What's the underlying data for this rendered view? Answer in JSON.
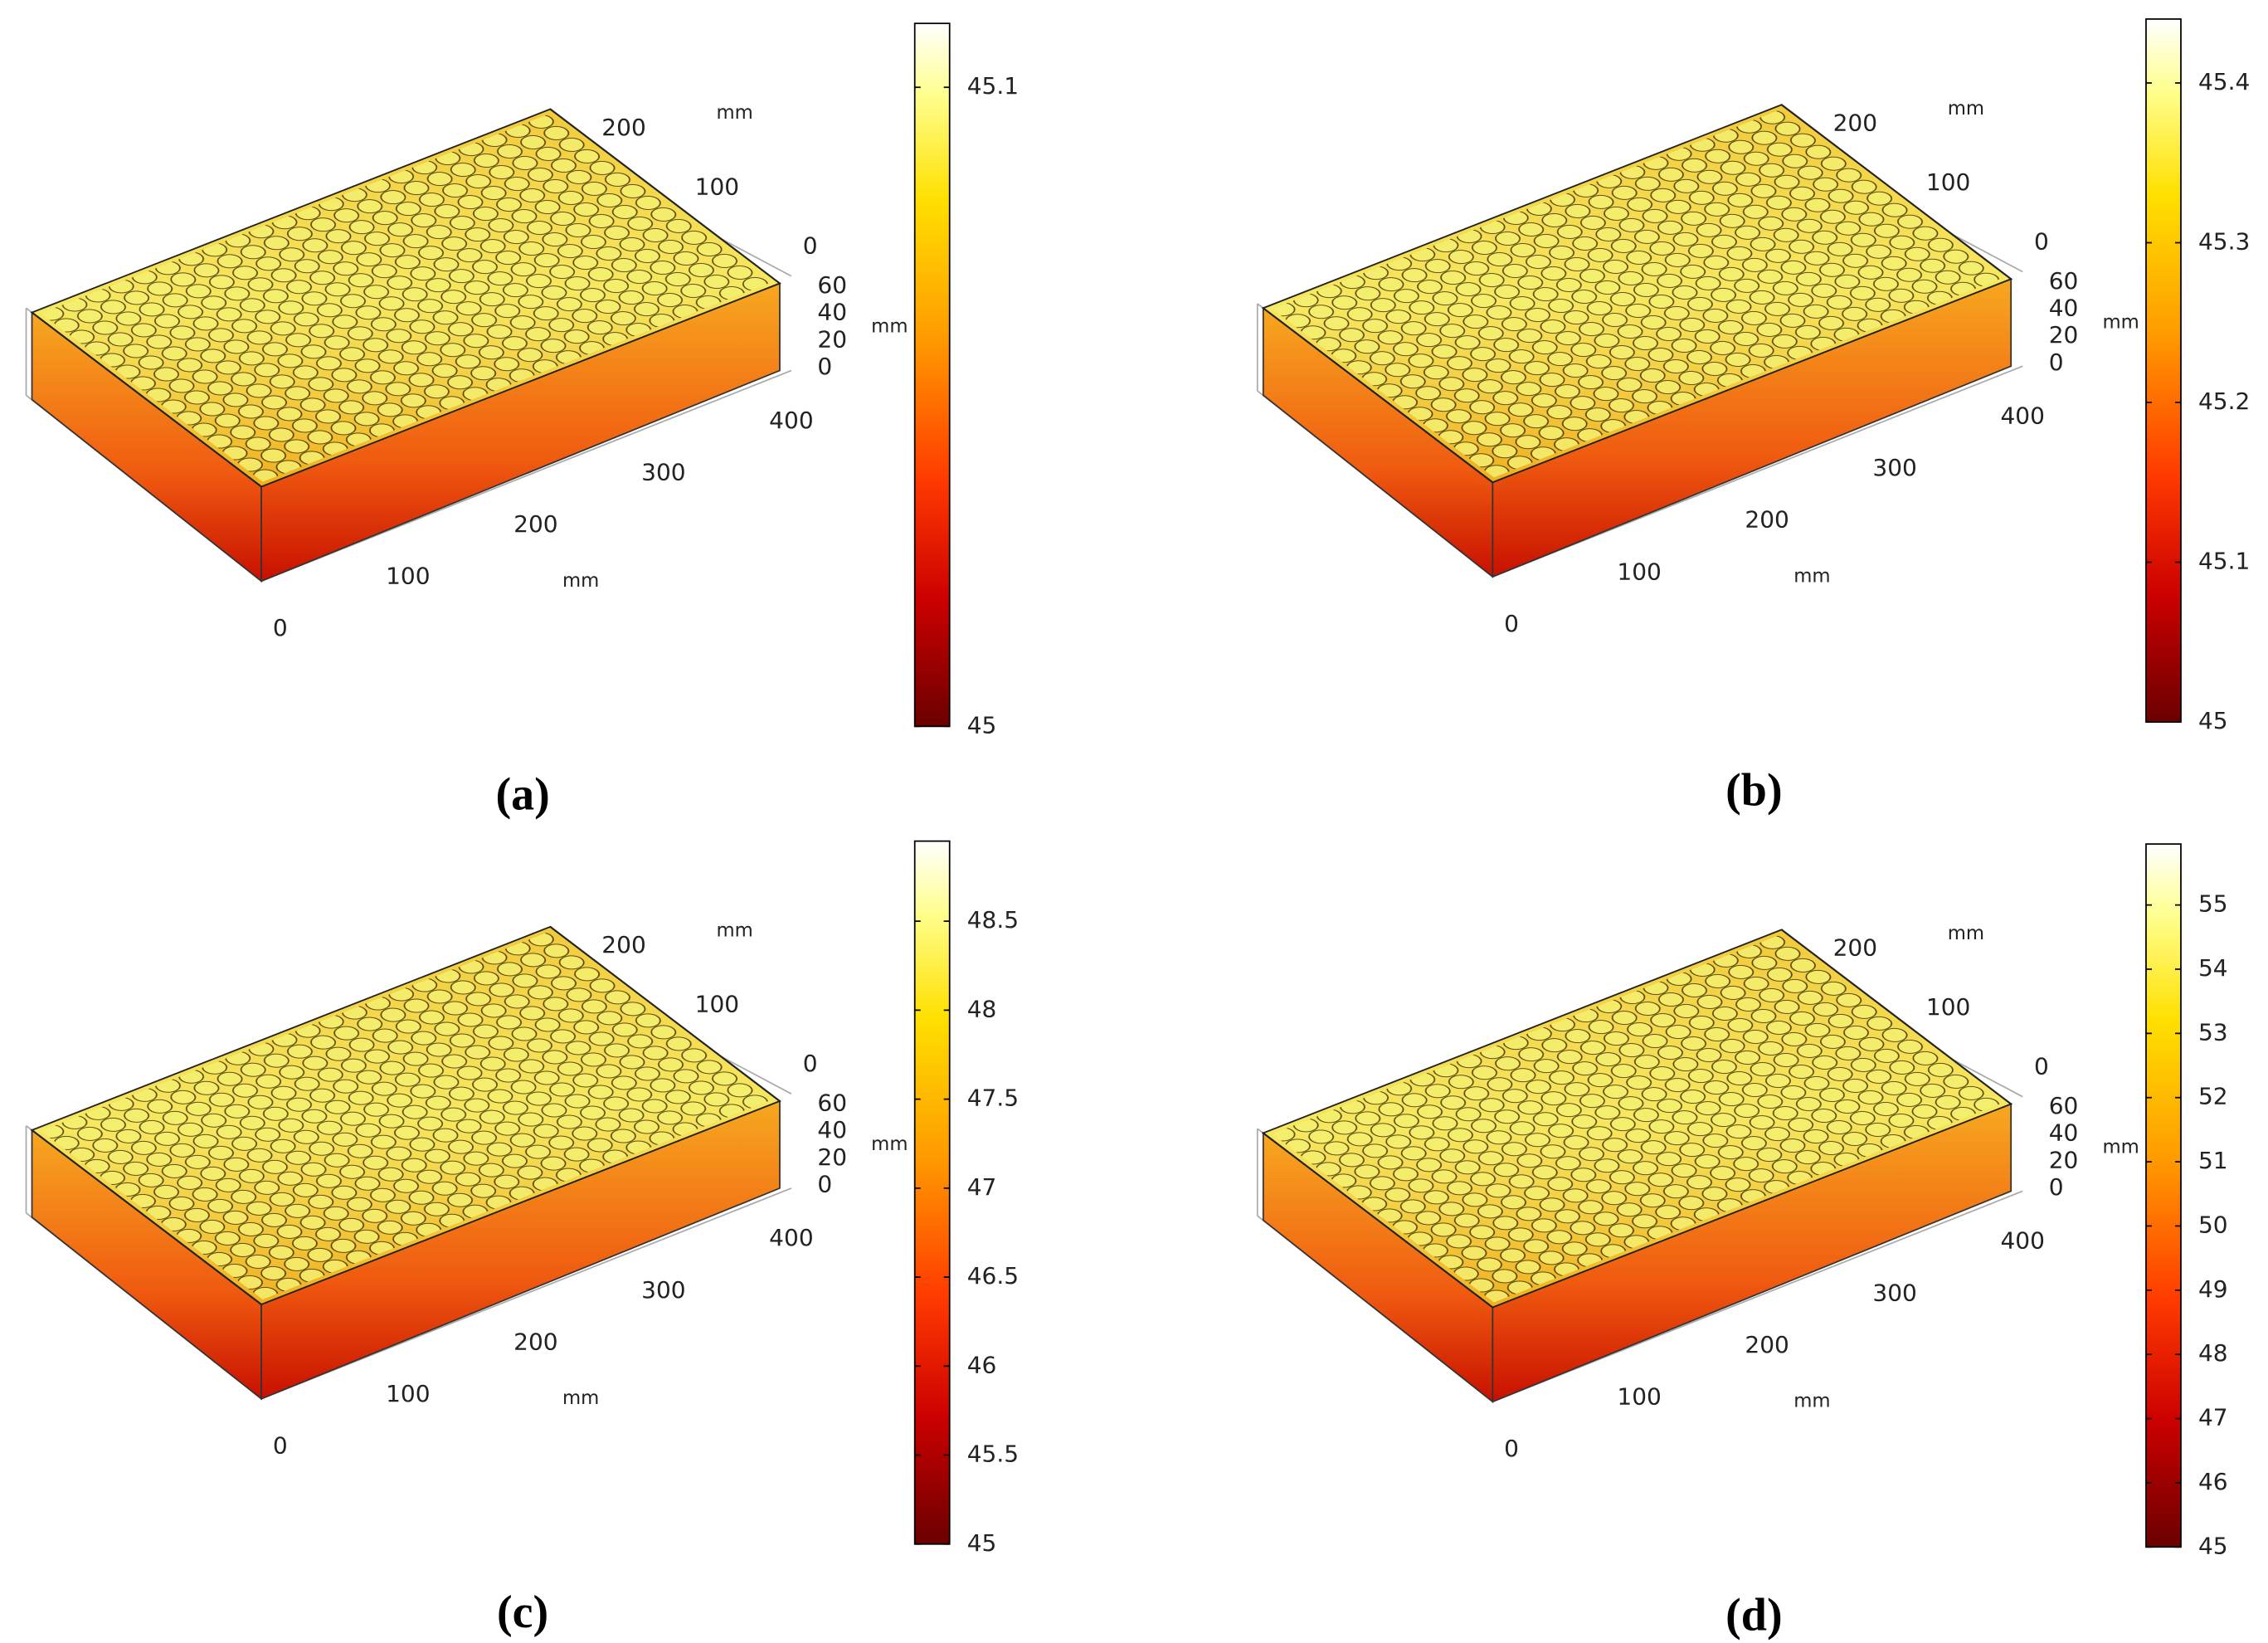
{
  "chart_data": [
    {
      "type": "surface3d",
      "label": "(a)",
      "xlim": [
        0,
        400
      ],
      "xticks": [
        0,
        100,
        200,
        300,
        400
      ],
      "ylim": [
        0,
        240
      ],
      "yticks": [
        0,
        100,
        200
      ],
      "zlim": [
        0,
        60
      ],
      "zticks": [
        0,
        20,
        40,
        60
      ],
      "x_unit": "mm",
      "y_unit": "mm",
      "z_unit": "mm",
      "colormap": "heat",
      "colorbar": {
        "lim": [
          45,
          45.11
        ],
        "ticks": [
          45,
          45.1
        ]
      }
    },
    {
      "type": "surface3d",
      "label": "(b)",
      "xlim": [
        0,
        400
      ],
      "xticks": [
        0,
        100,
        200,
        300,
        400
      ],
      "ylim": [
        0,
        240
      ],
      "yticks": [
        0,
        100,
        200
      ],
      "zlim": [
        0,
        60
      ],
      "zticks": [
        0,
        20,
        40,
        60
      ],
      "x_unit": "mm",
      "y_unit": "mm",
      "z_unit": "mm",
      "colormap": "heat",
      "colorbar": {
        "lim": [
          45,
          45.44
        ],
        "ticks": [
          45,
          45.1,
          45.2,
          45.3,
          45.4
        ]
      }
    },
    {
      "type": "surface3d",
      "label": "(c)",
      "xlim": [
        0,
        400
      ],
      "xticks": [
        0,
        100,
        200,
        300,
        400
      ],
      "ylim": [
        0,
        240
      ],
      "yticks": [
        0,
        100,
        200
      ],
      "zlim": [
        0,
        60
      ],
      "zticks": [
        0,
        20,
        40,
        60
      ],
      "x_unit": "mm",
      "y_unit": "mm",
      "z_unit": "mm",
      "colormap": "heat",
      "colorbar": {
        "lim": [
          45,
          48.95
        ],
        "ticks": [
          45,
          45.5,
          46,
          46.5,
          47,
          47.5,
          48,
          48.5
        ]
      }
    },
    {
      "type": "surface3d",
      "label": "(d)",
      "xlim": [
        0,
        400
      ],
      "xticks": [
        0,
        100,
        200,
        300,
        400
      ],
      "ylim": [
        0,
        240
      ],
      "yticks": [
        0,
        100,
        200
      ],
      "zlim": [
        0,
        60
      ],
      "zticks": [
        0,
        20,
        40,
        60
      ],
      "x_unit": "mm",
      "y_unit": "mm",
      "z_unit": "mm",
      "colormap": "heat",
      "colorbar": {
        "lim": [
          45,
          55.95
        ],
        "ticks": [
          45,
          46,
          47,
          48,
          49,
          50,
          51,
          52,
          53,
          54,
          55
        ]
      }
    }
  ]
}
